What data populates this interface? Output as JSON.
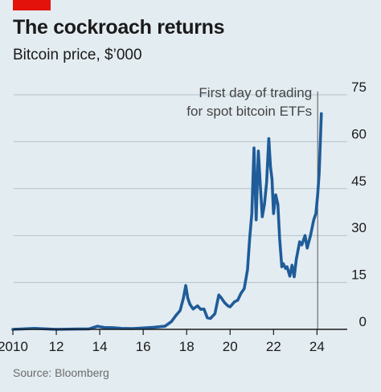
{
  "header": {
    "title": "The cockroach returns",
    "subtitle": "Bitcoin price, $’000",
    "source": "Source: Bloomberg",
    "tag_color": "#e3120b"
  },
  "colors": {
    "background": "#e3ecf1",
    "line": "#1f5c99",
    "grid": "#b3c2cc",
    "axis": "#1a1a1a",
    "annotation_line": "#555555"
  },
  "chart_data": {
    "type": "line",
    "title": "The cockroach returns",
    "subtitle": "Bitcoin price, $’000",
    "xlabel": "",
    "ylabel": "",
    "xlim": [
      2010,
      2024.8
    ],
    "ylim": [
      0,
      75
    ],
    "y_axis_side": "right",
    "grid": true,
    "yticks": [
      0,
      15,
      30,
      45,
      60,
      75
    ],
    "xticks": [
      {
        "value": 2010,
        "label": "2010"
      },
      {
        "value": 2012,
        "label": "12"
      },
      {
        "value": 2014,
        "label": "14"
      },
      {
        "value": 2016,
        "label": "16"
      },
      {
        "value": 2018,
        "label": "18"
      },
      {
        "value": 2020,
        "label": "20"
      },
      {
        "value": 2022,
        "label": "22"
      },
      {
        "value": 2024,
        "label": "24"
      }
    ],
    "annotations": [
      {
        "text_lines": [
          "First day of trading",
          "for spot bitcoin ETFs"
        ],
        "x": 2024.03
      }
    ],
    "series": [
      {
        "x": [
          2010.0,
          2011.0,
          2012.0,
          2013.0,
          2013.5,
          2013.9,
          2014.2,
          2014.6,
          2015.0,
          2015.5,
          2016.0,
          2016.5,
          2017.0,
          2017.3,
          2017.5,
          2017.7,
          2017.85,
          2017.96,
          2018.05,
          2018.15,
          2018.3,
          2018.4,
          2018.5,
          2018.65,
          2018.8,
          2018.95,
          2019.1,
          2019.3,
          2019.48,
          2019.6,
          2019.75,
          2019.9,
          2020.0,
          2020.2,
          2020.35,
          2020.5,
          2020.65,
          2020.8,
          2020.9,
          2021.0,
          2021.1,
          2021.2,
          2021.3,
          2021.4,
          2021.48,
          2021.58,
          2021.68,
          2021.78,
          2021.86,
          2021.93,
          2022.0,
          2022.1,
          2022.2,
          2022.28,
          2022.38,
          2022.45,
          2022.55,
          2022.62,
          2022.75,
          2022.85,
          2022.95,
          2023.05,
          2023.2,
          2023.3,
          2023.45,
          2023.55,
          2023.7,
          2023.85,
          2023.95,
          2024.03,
          2024.1,
          2024.2
        ],
        "values": [
          0.0,
          0.3,
          0.01,
          0.1,
          0.13,
          1.0,
          0.6,
          0.55,
          0.3,
          0.25,
          0.43,
          0.67,
          1.0,
          2.5,
          4.4,
          6.0,
          10.0,
          14.0,
          10.0,
          8.0,
          6.5,
          7.0,
          7.5,
          6.4,
          6.5,
          3.7,
          3.5,
          5.0,
          11.0,
          10.0,
          8.5,
          7.5,
          7.2,
          8.8,
          9.3,
          11.5,
          13.0,
          19.0,
          29.0,
          37.0,
          58.0,
          35.0,
          57.0,
          45.0,
          36.0,
          40.0,
          47.0,
          61.0,
          52.0,
          48.0,
          37.0,
          43.0,
          40.0,
          29.0,
          20.0,
          21.0,
          19.5,
          20.0,
          17.0,
          20.5,
          16.8,
          22.5,
          28.0,
          27.0,
          30.0,
          26.0,
          30.0,
          35.0,
          37.0,
          43.0,
          50.0,
          69.0
        ]
      }
    ]
  }
}
